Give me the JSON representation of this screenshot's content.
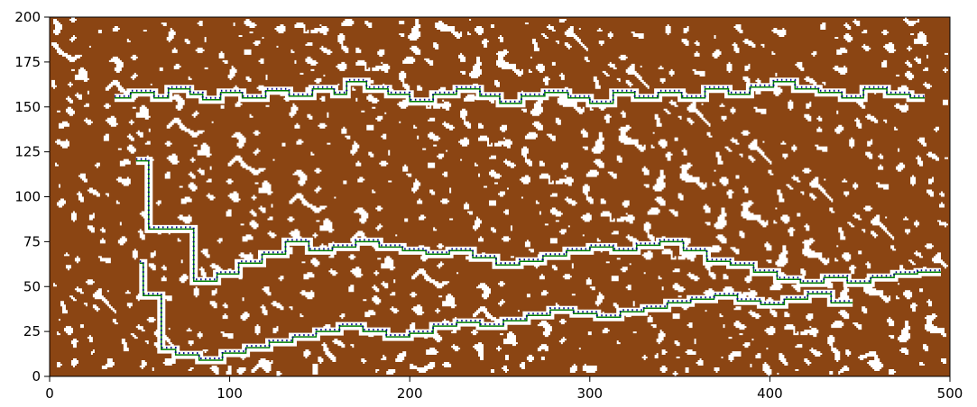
{
  "chart_data": {
    "type": "heatmap",
    "title": "",
    "xlabel": "",
    "ylabel": "",
    "xlim": [
      0,
      500
    ],
    "ylim": [
      0,
      200
    ],
    "x_ticks": [
      0,
      100,
      200,
      300,
      400,
      500
    ],
    "y_ticks": [
      0,
      25,
      50,
      75,
      100,
      125,
      150,
      175,
      200
    ],
    "x_tick_labels": [
      "0",
      "100",
      "200",
      "300",
      "400",
      "500"
    ],
    "y_tick_labels": [
      "0",
      "25",
      "50",
      "75",
      "100",
      "125",
      "150",
      "175",
      "200"
    ],
    "grid": false,
    "legend": "none",
    "colors": {
      "terrain": "#8B4513",
      "empty": "#ffffff",
      "path": "#008000",
      "markers": "#00008B"
    },
    "grid_size": [
      500,
      200
    ],
    "fill_fraction": 0.7,
    "paths": [
      {
        "name": "",
        "points": [
          [
            36,
            155
          ],
          [
            45,
            155
          ],
          [
            45,
            158
          ],
          [
            58,
            158
          ],
          [
            58,
            155
          ],
          [
            66,
            155
          ],
          [
            66,
            160
          ],
          [
            78,
            160
          ],
          [
            78,
            157
          ],
          [
            85,
            157
          ],
          [
            85,
            154
          ],
          [
            95,
            154
          ],
          [
            95,
            158
          ],
          [
            107,
            158
          ],
          [
            107,
            155
          ],
          [
            120,
            155
          ],
          [
            120,
            159
          ],
          [
            133,
            159
          ],
          [
            133,
            156
          ],
          [
            146,
            156
          ],
          [
            146,
            160
          ],
          [
            158,
            160
          ],
          [
            158,
            157
          ],
          [
            165,
            157
          ],
          [
            165,
            164
          ],
          [
            176,
            164
          ],
          [
            176,
            160
          ],
          [
            188,
            160
          ],
          [
            188,
            157
          ],
          [
            200,
            157
          ],
          [
            200,
            153
          ],
          [
            213,
            153
          ],
          [
            213,
            157
          ],
          [
            226,
            157
          ],
          [
            226,
            160
          ],
          [
            239,
            160
          ],
          [
            239,
            156
          ],
          [
            250,
            156
          ],
          [
            250,
            152
          ],
          [
            262,
            152
          ],
          [
            262,
            156
          ],
          [
            275,
            156
          ],
          [
            275,
            158
          ],
          [
            288,
            158
          ],
          [
            288,
            155
          ],
          [
            300,
            155
          ],
          [
            300,
            152
          ],
          [
            313,
            152
          ],
          [
            313,
            158
          ],
          [
            325,
            158
          ],
          [
            325,
            155
          ],
          [
            338,
            155
          ],
          [
            338,
            158
          ],
          [
            351,
            158
          ],
          [
            351,
            155
          ],
          [
            364,
            155
          ],
          [
            364,
            160
          ],
          [
            377,
            160
          ],
          [
            377,
            157
          ],
          [
            389,
            157
          ],
          [
            389,
            161
          ],
          [
            402,
            161
          ],
          [
            402,
            164
          ],
          [
            414,
            164
          ],
          [
            414,
            160
          ],
          [
            427,
            160
          ],
          [
            427,
            158
          ],
          [
            440,
            158
          ],
          [
            440,
            155
          ],
          [
            452,
            155
          ],
          [
            452,
            160
          ],
          [
            465,
            160
          ],
          [
            465,
            157
          ],
          [
            478,
            157
          ],
          [
            478,
            155
          ],
          [
            486,
            155
          ]
        ]
      },
      {
        "name": "",
        "points": [
          [
            48,
            120
          ],
          [
            55,
            120
          ],
          [
            55,
            82
          ],
          [
            80,
            82
          ],
          [
            80,
            53
          ],
          [
            93,
            53
          ],
          [
            93,
            57
          ],
          [
            105,
            57
          ],
          [
            105,
            63
          ],
          [
            118,
            63
          ],
          [
            118,
            68
          ],
          [
            131,
            68
          ],
          [
            131,
            75
          ],
          [
            144,
            75
          ],
          [
            144,
            70
          ],
          [
            157,
            70
          ],
          [
            157,
            72
          ],
          [
            170,
            72
          ],
          [
            170,
            75
          ],
          [
            183,
            75
          ],
          [
            183,
            72
          ],
          [
            196,
            72
          ],
          [
            196,
            70
          ],
          [
            209,
            70
          ],
          [
            209,
            68
          ],
          [
            222,
            68
          ],
          [
            222,
            70
          ],
          [
            235,
            70
          ],
          [
            235,
            66
          ],
          [
            248,
            66
          ],
          [
            248,
            62
          ],
          [
            261,
            62
          ],
          [
            261,
            64
          ],
          [
            274,
            64
          ],
          [
            274,
            67
          ],
          [
            287,
            67
          ],
          [
            287,
            70
          ],
          [
            300,
            70
          ],
          [
            300,
            72
          ],
          [
            313,
            72
          ],
          [
            313,
            70
          ],
          [
            326,
            70
          ],
          [
            326,
            73
          ],
          [
            339,
            73
          ],
          [
            339,
            75
          ],
          [
            352,
            75
          ],
          [
            352,
            70
          ],
          [
            365,
            70
          ],
          [
            365,
            64
          ],
          [
            378,
            64
          ],
          [
            378,
            62
          ],
          [
            391,
            62
          ],
          [
            391,
            58
          ],
          [
            404,
            58
          ],
          [
            404,
            54
          ],
          [
            417,
            54
          ],
          [
            417,
            52
          ],
          [
            430,
            52
          ],
          [
            430,
            55
          ],
          [
            443,
            55
          ],
          [
            443,
            52
          ],
          [
            456,
            52
          ],
          [
            456,
            55
          ],
          [
            469,
            55
          ],
          [
            469,
            57
          ],
          [
            482,
            57
          ],
          [
            482,
            58
          ],
          [
            495,
            58
          ]
        ]
      },
      {
        "name": "",
        "points": [
          [
            50,
            63
          ],
          [
            52,
            63
          ],
          [
            52,
            45
          ],
          [
            62,
            45
          ],
          [
            62,
            15
          ],
          [
            70,
            15
          ],
          [
            70,
            12
          ],
          [
            83,
            12
          ],
          [
            83,
            9
          ],
          [
            96,
            9
          ],
          [
            96,
            13
          ],
          [
            109,
            13
          ],
          [
            109,
            16
          ],
          [
            122,
            16
          ],
          [
            122,
            19
          ],
          [
            135,
            19
          ],
          [
            135,
            22
          ],
          [
            148,
            22
          ],
          [
            148,
            25
          ],
          [
            161,
            25
          ],
          [
            161,
            28
          ],
          [
            174,
            28
          ],
          [
            174,
            25
          ],
          [
            187,
            25
          ],
          [
            187,
            22
          ],
          [
            200,
            22
          ],
          [
            200,
            24
          ],
          [
            213,
            24
          ],
          [
            213,
            28
          ],
          [
            226,
            28
          ],
          [
            226,
            30
          ],
          [
            239,
            30
          ],
          [
            239,
            28
          ],
          [
            252,
            28
          ],
          [
            252,
            31
          ],
          [
            265,
            31
          ],
          [
            265,
            34
          ],
          [
            278,
            34
          ],
          [
            278,
            37
          ],
          [
            291,
            37
          ],
          [
            291,
            35
          ],
          [
            304,
            35
          ],
          [
            304,
            33
          ],
          [
            317,
            33
          ],
          [
            317,
            36
          ],
          [
            330,
            36
          ],
          [
            330,
            38
          ],
          [
            343,
            38
          ],
          [
            343,
            41
          ],
          [
            356,
            41
          ],
          [
            356,
            43
          ],
          [
            369,
            43
          ],
          [
            369,
            45
          ],
          [
            382,
            45
          ],
          [
            382,
            42
          ],
          [
            395,
            42
          ],
          [
            395,
            40
          ],
          [
            408,
            40
          ],
          [
            408,
            43
          ],
          [
            421,
            43
          ],
          [
            421,
            46
          ],
          [
            434,
            46
          ],
          [
            434,
            41
          ],
          [
            446,
            41
          ]
        ]
      }
    ]
  }
}
